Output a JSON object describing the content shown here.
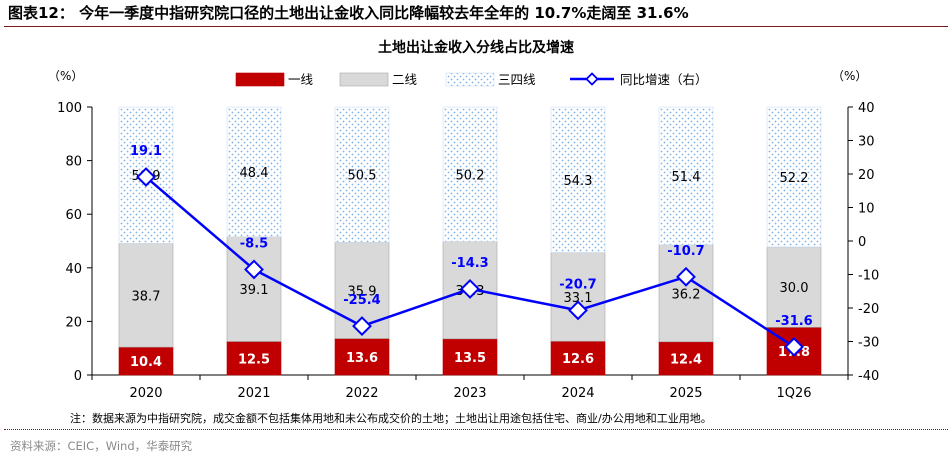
{
  "figure_title": "图表12：  今年一季度中指研究院口径的土地出让金收入同比降幅较去年全年的 10.7%走阔至 31.6%",
  "footnote": "注：数据来源为中指研究院，成交金额不包括集体用地和未公布成交价的土地；土地出让用途包括住宅、商业/办公用地和工业用地。",
  "source": "资料来源：CEIC，Wind，华泰研究",
  "colors": {
    "tier1": "#c00000",
    "tier2": "#d9d9d9",
    "tier3_dots": "#7fb2e5",
    "growth": "#0000ff",
    "title_rule": "#7b1a1a"
  },
  "chart_data": {
    "type": "bar",
    "stacked": true,
    "title": "土地出让金收入分线占比及增速",
    "categories": [
      "2020",
      "2021",
      "2022",
      "2023",
      "2024",
      "2025",
      "1Q26"
    ],
    "ylabel_left": "（%）",
    "ylabel_right": "（%）",
    "ylim_left": [
      0,
      100
    ],
    "yticks_left": [
      0,
      20,
      40,
      60,
      80,
      100
    ],
    "ylim_right": [
      -40,
      40
    ],
    "yticks_right": [
      -40,
      -30,
      -20,
      -10,
      0,
      10,
      20,
      30,
      40
    ],
    "legend_position": "top",
    "grid": false,
    "series": [
      {
        "name": "一线",
        "type": "bar",
        "axis": "left",
        "values": [
          10.4,
          12.5,
          13.6,
          13.5,
          12.6,
          12.4,
          17.8
        ]
      },
      {
        "name": "二线",
        "type": "bar",
        "axis": "left",
        "values": [
          38.7,
          39.1,
          35.9,
          36.3,
          33.1,
          36.2,
          30.0
        ]
      },
      {
        "name": "三四线",
        "type": "bar",
        "axis": "left",
        "values": [
          50.9,
          48.4,
          50.5,
          50.2,
          54.3,
          51.4,
          52.2
        ]
      },
      {
        "name": "同比增速（右）",
        "type": "line",
        "axis": "right",
        "values": [
          19.1,
          -8.5,
          -25.4,
          -14.3,
          -20.7,
          -10.7,
          -31.6
        ]
      }
    ],
    "bar_labels": {
      "一线": [
        "10.4",
        "12.5",
        "13.6",
        "13.5",
        "12.6",
        "12.4",
        "17.8"
      ],
      "二线": [
        "38.7",
        "39.1",
        "35.9",
        "36.3",
        "33.1",
        "36.2",
        "30.0"
      ],
      "三四线": [
        "50.9",
        "48.4",
        "50.5",
        "50.2",
        "54.3",
        "51.4",
        "52.2"
      ]
    },
    "line_labels": [
      "19.1",
      "-8.5",
      "-25.4",
      "-14.3",
      "-20.7",
      "-10.7",
      "-31.6"
    ]
  }
}
